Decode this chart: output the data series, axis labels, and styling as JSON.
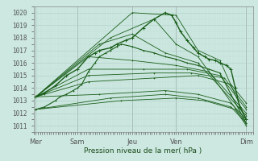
{
  "xlabel": "Pression niveau de la mer( hPa )",
  "ylim": [
    1010.5,
    1020.5
  ],
  "xlim": [
    0,
    100
  ],
  "yticks": [
    1011,
    1012,
    1013,
    1014,
    1015,
    1016,
    1017,
    1018,
    1019,
    1020
  ],
  "xtick_positions": [
    1,
    20,
    45,
    65,
    97
  ],
  "xtick_labels": [
    "Mer",
    "Sam",
    "Jeu",
    "Ven",
    "Dim"
  ],
  "vline_positions": [
    1,
    20,
    45,
    65,
    97
  ],
  "bg_color": "#cce8e0",
  "grid_major_color": "#b0d0c8",
  "grid_minor_color": "#c0dcd4",
  "line_color": "#1a5e1a",
  "fan_lines": [
    {
      "x": [
        1,
        45,
        65,
        75,
        85,
        97
      ],
      "y": [
        1013.3,
        1020.0,
        1019.8,
        1017.0,
        1016.2,
        1011.5
      ]
    },
    {
      "x": [
        1,
        35,
        55,
        65,
        75,
        97
      ],
      "y": [
        1013.3,
        1018.0,
        1019.5,
        1017.5,
        1016.5,
        1011.2
      ]
    },
    {
      "x": [
        1,
        30,
        45,
        60,
        75,
        97
      ],
      "y": [
        1013.3,
        1017.5,
        1018.3,
        1016.8,
        1016.0,
        1011.8
      ]
    },
    {
      "x": [
        1,
        25,
        45,
        65,
        80,
        97
      ],
      "y": [
        1013.3,
        1016.5,
        1016.2,
        1015.8,
        1015.3,
        1012.0
      ]
    },
    {
      "x": [
        1,
        25,
        50,
        70,
        85,
        97
      ],
      "y": [
        1013.3,
        1015.5,
        1015.5,
        1015.5,
        1015.0,
        1012.3
      ]
    },
    {
      "x": [
        1,
        25,
        55,
        72,
        87,
        97
      ],
      "y": [
        1013.3,
        1015.0,
        1015.2,
        1015.2,
        1014.8,
        1012.5
      ]
    },
    {
      "x": [
        1,
        25,
        55,
        75,
        90,
        97
      ],
      "y": [
        1013.3,
        1014.5,
        1014.8,
        1015.0,
        1014.3,
        1012.8
      ]
    },
    {
      "x": [
        1,
        30,
        60,
        75,
        90,
        97
      ],
      "y": [
        1013.3,
        1013.5,
        1013.8,
        1013.5,
        1012.8,
        1011.5
      ]
    },
    {
      "x": [
        1,
        35,
        60,
        75,
        90,
        97
      ],
      "y": [
        1012.3,
        1013.2,
        1013.5,
        1013.2,
        1012.5,
        1011.2
      ]
    },
    {
      "x": [
        1,
        40,
        65,
        78,
        92,
        97
      ],
      "y": [
        1012.3,
        1013.0,
        1013.2,
        1013.0,
        1012.3,
        1011.0
      ]
    }
  ],
  "main_line": {
    "x": [
      1,
      5,
      10,
      15,
      20,
      25,
      28,
      30,
      35,
      38,
      42,
      45,
      50,
      55,
      60,
      63,
      65,
      67,
      70,
      73,
      75,
      78,
      80,
      83,
      85,
      88,
      90,
      92,
      94,
      97
    ],
    "y": [
      1013.3,
      1013.6,
      1014.2,
      1015.0,
      1015.5,
      1016.5,
      1016.8,
      1017.0,
      1017.2,
      1017.5,
      1017.8,
      1018.0,
      1018.8,
      1019.5,
      1020.0,
      1019.8,
      1019.2,
      1018.5,
      1017.8,
      1017.2,
      1016.8,
      1016.5,
      1016.3,
      1016.2,
      1016.0,
      1015.8,
      1015.5,
      1014.0,
      1012.5,
      1011.5
    ]
  },
  "start_line": {
    "x": [
      1,
      5,
      10,
      12,
      15,
      18,
      20,
      22,
      25,
      28,
      30,
      33,
      35,
      38,
      40,
      45,
      50,
      55,
      60,
      65,
      70,
      75,
      80,
      85,
      90,
      97
    ],
    "y": [
      1012.3,
      1012.5,
      1013.0,
      1013.3,
      1013.5,
      1013.8,
      1014.0,
      1014.3,
      1015.3,
      1016.0,
      1016.5,
      1016.8,
      1017.0,
      1017.3,
      1017.5,
      1017.3,
      1017.0,
      1016.8,
      1016.5,
      1016.3,
      1016.0,
      1015.8,
      1015.5,
      1015.2,
      1013.5,
      1011.2
    ]
  }
}
